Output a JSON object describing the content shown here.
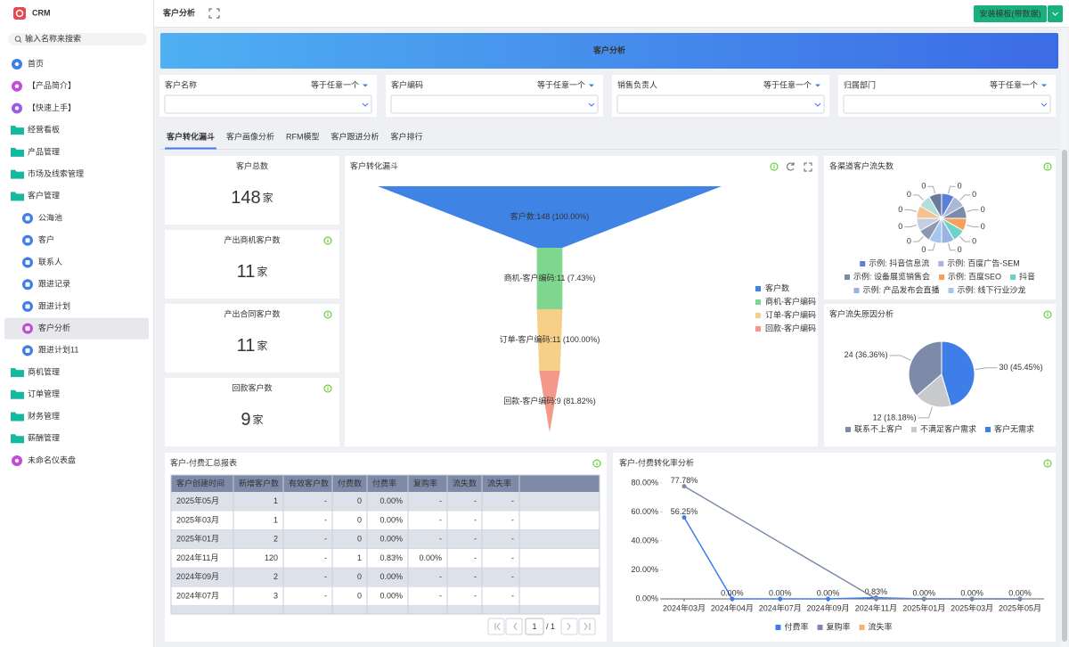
{
  "sidebar": {
    "logo": "CRM",
    "search_placeholder": "输入名称来搜索",
    "menu": [
      {
        "label": "首页"
      },
      {
        "label": "【产品简介】"
      },
      {
        "label": "【快速上手】"
      },
      {
        "label": "经营看板"
      },
      {
        "label": "产品管理"
      },
      {
        "label": "市场及线索管理"
      },
      {
        "label": "客户管理",
        "children": [
          {
            "label": "公海池"
          },
          {
            "label": "客户"
          },
          {
            "label": "联系人"
          },
          {
            "label": "跟进记录"
          },
          {
            "label": "跟进计划"
          },
          {
            "label": "客户分析",
            "active": true
          },
          {
            "label": "跟进计划11"
          }
        ]
      },
      {
        "label": "商机管理"
      },
      {
        "label": "订单管理"
      },
      {
        "label": "财务管理"
      },
      {
        "label": "薪酬管理"
      },
      {
        "label": "未命名仪表盘"
      }
    ]
  },
  "header": {
    "title": "客户分析",
    "button": "安装模板(带数据)"
  },
  "banner": {
    "title": "客户分析"
  },
  "filters": [
    {
      "label": "客户名称",
      "operator": "等于任意一个"
    },
    {
      "label": "客户编码",
      "operator": "等于任意一个"
    },
    {
      "label": "销售负责人",
      "operator": "等于任意一个"
    },
    {
      "label": "归属部门",
      "operator": "等于任意一个"
    }
  ],
  "tabs": {
    "items": [
      "客户转化漏斗",
      "客户画像分析",
      "RFM模型",
      "客户跟进分析",
      "客户排行"
    ],
    "active": 0
  },
  "kpis": [
    {
      "title": "客户总数",
      "value": 148,
      "unit": "家"
    },
    {
      "title": "产出商机客户数",
      "value": 11,
      "unit": "家"
    },
    {
      "title": "产出合同客户数",
      "value": 11,
      "unit": "家"
    },
    {
      "title": "回款客户数",
      "value": 9,
      "unit": "家"
    }
  ],
  "chart_data": [
    {
      "type": "funnel",
      "title": "客户转化漏斗",
      "categories": [
        "客户数",
        "商机-客户编码",
        "订单-客户编码",
        "回款-客户编码"
      ],
      "values": [
        148,
        11,
        11,
        9
      ],
      "value_labels": [
        "客户数:148 (100.00%)",
        "商机-客户编码:11 (7.43%)",
        "订单-客户编码:11 (100.00%)",
        "回款-客户编码:9 (81.82%)"
      ],
      "colors": [
        "#3f84e5",
        "#7fd68f",
        "#f6cf88",
        "#f4998a"
      ],
      "legend": "right"
    },
    {
      "type": "pie",
      "title": "各渠道客户流失数",
      "categories": [
        "示例: 抖音信息流",
        "示例: 百度广告-SEM",
        "示例: 设备展览销售会",
        "示例: 百度SEO",
        "抖音",
        "示例: 产品发布会直播",
        "示例: 线下行业沙龙",
        null,
        null,
        null,
        null,
        null
      ],
      "values": [
        0,
        0,
        0,
        0,
        0,
        0,
        0,
        0,
        0,
        0,
        0,
        0
      ],
      "colors": [
        "#5b7fd6",
        "#a9b8d8",
        "#7d8aa8",
        "#f5a25d",
        "#6dd3c7",
        "#9bb3e0",
        "#a7c6ed",
        "#8d98b3",
        "#c5cfe0",
        "#f7c28f",
        "#b4dfd9",
        "#6c7a99"
      ],
      "clockwise": true,
      "legend": "bottom"
    },
    {
      "type": "pie",
      "title": "客户流失原因分析",
      "categories": [
        "联系不上客户",
        "不满足客户需求",
        "客户无需求"
      ],
      "values": [
        24,
        12,
        30
      ],
      "value_labels": [
        "24 (36.36%)",
        "12 (18.18%)",
        "30 (45.45%)"
      ],
      "colors": [
        "#7d8aa8",
        "#c8c9cc",
        "#3d7ee8"
      ],
      "clockwise": false,
      "legend": "bottom"
    },
    {
      "type": "line",
      "title": "客户-付费转化率分析",
      "x": [
        "2024年03月",
        "2024年04月",
        "2024年07月",
        "2024年09月",
        "2024年11月",
        "2025年01月",
        "2025年03月",
        "2025年05月"
      ],
      "series": [
        {
          "name": "付费率",
          "color": "#3d7ee8",
          "values": [
            56.25,
            0,
            0,
            0,
            0.83,
            0,
            0,
            0
          ],
          "value_labels": [
            "56.25%",
            "0.00%",
            "0.00%",
            "0.00%",
            "0.83%",
            "0.00%",
            "0.00%",
            "0.00%"
          ]
        },
        {
          "name": "复购率",
          "color": "#7d8aa8",
          "values": [
            77.78,
            null,
            null,
            null,
            0,
            0,
            0,
            0
          ],
          "value_labels": [
            "77.78%",
            null,
            null,
            null,
            null,
            null,
            null,
            null
          ]
        },
        {
          "name": "流失率",
          "color": "#f5b26b",
          "values": [
            null,
            null,
            null,
            null,
            null,
            null,
            null,
            null
          ]
        }
      ],
      "ylim": [
        0,
        80
      ],
      "yticks": [
        {
          "value": 0,
          "label": "0.00%"
        },
        {
          "value": 20,
          "label": "20.00%"
        },
        {
          "value": 40,
          "label": "40.00%"
        },
        {
          "value": 60,
          "label": "60.00%"
        },
        {
          "value": 80,
          "label": "80.00%"
        }
      ],
      "grid": false,
      "connect_nulls": true,
      "legend": "bottom"
    }
  ],
  "table": {
    "title": "客户-付费汇总报表",
    "columns": [
      "客户创建时间",
      "新增客户数",
      "有效客户数",
      "付费数",
      "付费率",
      "复购率",
      "流失数",
      "流失率"
    ],
    "rows": [
      [
        "2025年05月",
        "1",
        "-",
        "0",
        "0.00%",
        "-",
        "-",
        "-"
      ],
      [
        "2025年03月",
        "1",
        "-",
        "0",
        "0.00%",
        "-",
        "-",
        "-"
      ],
      [
        "2025年01月",
        "2",
        "-",
        "0",
        "0.00%",
        "-",
        "-",
        "-"
      ],
      [
        "2024年11月",
        "120",
        "-",
        "1",
        "0.83%",
        "0.00%",
        "-",
        "-"
      ],
      [
        "2024年09月",
        "2",
        "-",
        "0",
        "0.00%",
        "-",
        "-",
        "-"
      ],
      [
        "2024年07月",
        "3",
        "-",
        "0",
        "0.00%",
        "-",
        "-",
        "-"
      ]
    ],
    "pagination": {
      "page": "1",
      "total": "/ 1"
    }
  }
}
